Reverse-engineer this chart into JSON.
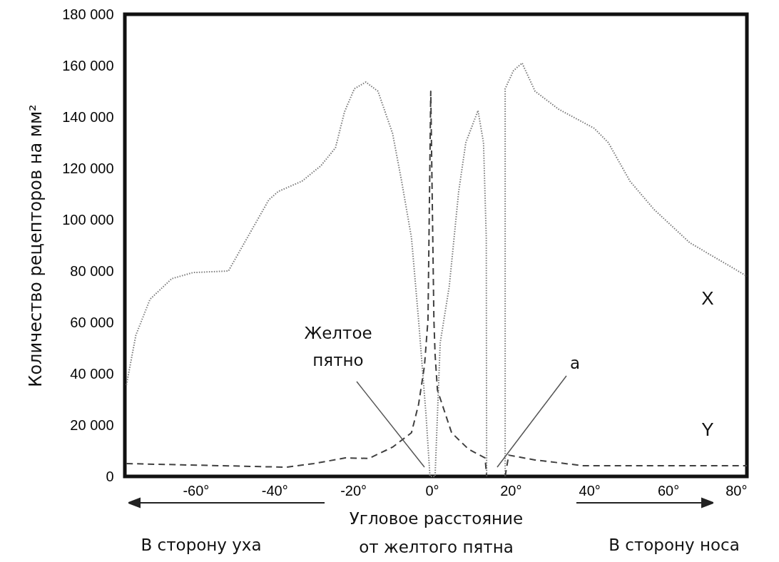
{
  "chart_data": {
    "type": "line",
    "xlabel": "Угловое расстояние\nот желтого пятна",
    "ylabel": "Количество рецепторов на мм²",
    "xlim": [
      -78,
      80
    ],
    "ylim": [
      0,
      180000
    ],
    "xticks": [
      {
        "value": -60,
        "label": "-60°"
      },
      {
        "value": -40,
        "label": "-40°"
      },
      {
        "value": -20,
        "label": "-20°"
      },
      {
        "value": 0,
        "label": "0°"
      },
      {
        "value": 20,
        "label": "20°"
      },
      {
        "value": 40,
        "label": "40°"
      },
      {
        "value": 60,
        "label": "60°"
      },
      {
        "value": 80,
        "label": "80°"
      }
    ],
    "yticks": [
      0,
      {
        "value": 20000,
        "label": "20 000"
      },
      {
        "value": 40000,
        "label": "40 000"
      },
      {
        "value": 60000,
        "label": "60 000"
      },
      {
        "value": 80000,
        "label": "80 000"
      },
      {
        "value": 100000,
        "label": "100 000"
      },
      {
        "value": 120000,
        "label": "120 000"
      },
      {
        "value": 140000,
        "label": "140 000"
      },
      {
        "value": 160000,
        "label": "160 000"
      },
      {
        "value": 180000,
        "label": "180 000"
      }
    ],
    "series": [
      {
        "name": "X",
        "color": "#7a7a7a",
        "line_style": "dotted",
        "x": [
          -77.6,
          -75.2,
          -71.6,
          -66.1,
          -60.7,
          -51.7,
          -41.4,
          -39,
          -33,
          -28.2,
          -24.5,
          -22.2,
          -19.7,
          -16.8,
          -13.7,
          -10,
          -7.7,
          -5.2,
          -3.4,
          -1.5,
          -0.5,
          0.8,
          2.1,
          4.4,
          6.8,
          8.6,
          11.7,
          13.1,
          13.8,
          13.9,
          16,
          18.6,
          18.6,
          20.7,
          22.9,
          26.2,
          32.2,
          41.2,
          44.8,
          50.3,
          56.4,
          65.5,
          80
        ],
        "values": [
          35600,
          55000,
          69000,
          77000,
          79400,
          80000,
          107800,
          111000,
          115000,
          121000,
          128000,
          142000,
          151000,
          153600,
          150000,
          133600,
          115000,
          93000,
          61000,
          24000,
          0,
          0,
          52000,
          74000,
          111000,
          130000,
          142500,
          130000,
          93000,
          0,
          null,
          0,
          151000,
          158000,
          161000,
          150000,
          143000,
          135600,
          130000,
          115000,
          104000,
          91000,
          78000
        ]
      },
      {
        "name": "Y",
        "color": "#404040",
        "line_style": "dashed",
        "x": [
          -77.6,
          -37,
          -30,
          -22,
          -16,
          -10,
          -5.2,
          -3.4,
          -1.9,
          -1,
          -0.3,
          0.5,
          0.8,
          1.4,
          5,
          9.3,
          13.5,
          13.9,
          16,
          18.6,
          19.5,
          26.2,
          38.3,
          80
        ],
        "values": [
          5000,
          3600,
          5000,
          7200,
          7000,
          11400,
          17000,
          28000,
          43000,
          61000,
          150000,
          61000,
          47500,
          33600,
          17000,
          10600,
          7200,
          0,
          null,
          0,
          8300,
          6400,
          4200,
          4200
        ]
      }
    ],
    "annotations": [
      "Желтое\nпятно",
      "a",
      "В сторону уха",
      "В сторону носа"
    ]
  }
}
